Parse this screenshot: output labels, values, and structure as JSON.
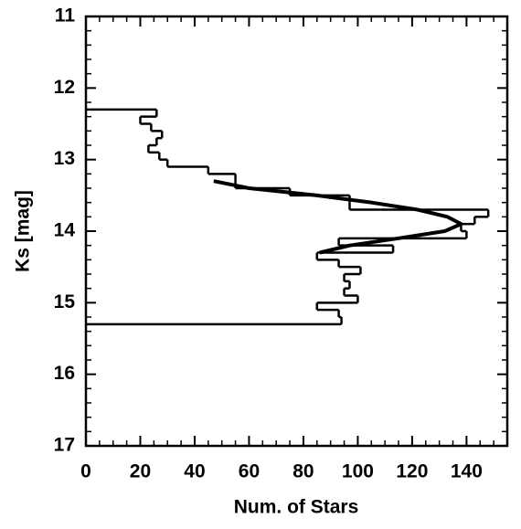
{
  "chart_data": {
    "type": "histogram",
    "orientation": "horizontal",
    "xlabel": "Num. of Stars",
    "ylabel": "Ks [mag]",
    "bins": [
      12.3,
      12.4,
      12.5,
      12.6,
      12.7,
      12.8,
      12.9,
      13.0,
      13.1,
      13.2,
      13.3,
      13.4,
      13.5,
      13.6,
      13.7,
      13.8,
      13.9,
      14.0,
      14.1,
      14.2,
      14.3,
      14.4,
      14.5,
      14.6,
      14.7,
      14.8,
      14.9,
      15.0,
      15.1,
      15.2,
      15.3
    ],
    "counts": [
      26,
      20,
      24,
      28,
      26,
      23,
      27,
      30,
      45,
      55,
      55,
      75,
      97,
      97,
      148,
      143,
      138,
      140,
      93,
      113,
      85,
      93,
      101,
      95,
      97,
      95,
      100,
      85,
      93,
      94
    ],
    "color": "#000000",
    "fit": {
      "x": [
        13.3,
        13.4,
        13.5,
        13.6,
        13.7,
        13.8,
        13.9,
        14.0,
        14.1,
        14.2,
        14.3
      ],
      "values": [
        47,
        60,
        85,
        105,
        122,
        133,
        138,
        132,
        115,
        97,
        86
      ],
      "color": "#000000"
    },
    "xlim": [
      0,
      155
    ],
    "xticks": [
      0,
      20,
      40,
      60,
      80,
      100,
      120,
      140
    ],
    "ylim": [
      11,
      17
    ],
    "y_inverted": true,
    "yticks": [
      11,
      12,
      13,
      14,
      15,
      16,
      17
    ],
    "minor_ticks": true,
    "mirror_ticks": true
  }
}
